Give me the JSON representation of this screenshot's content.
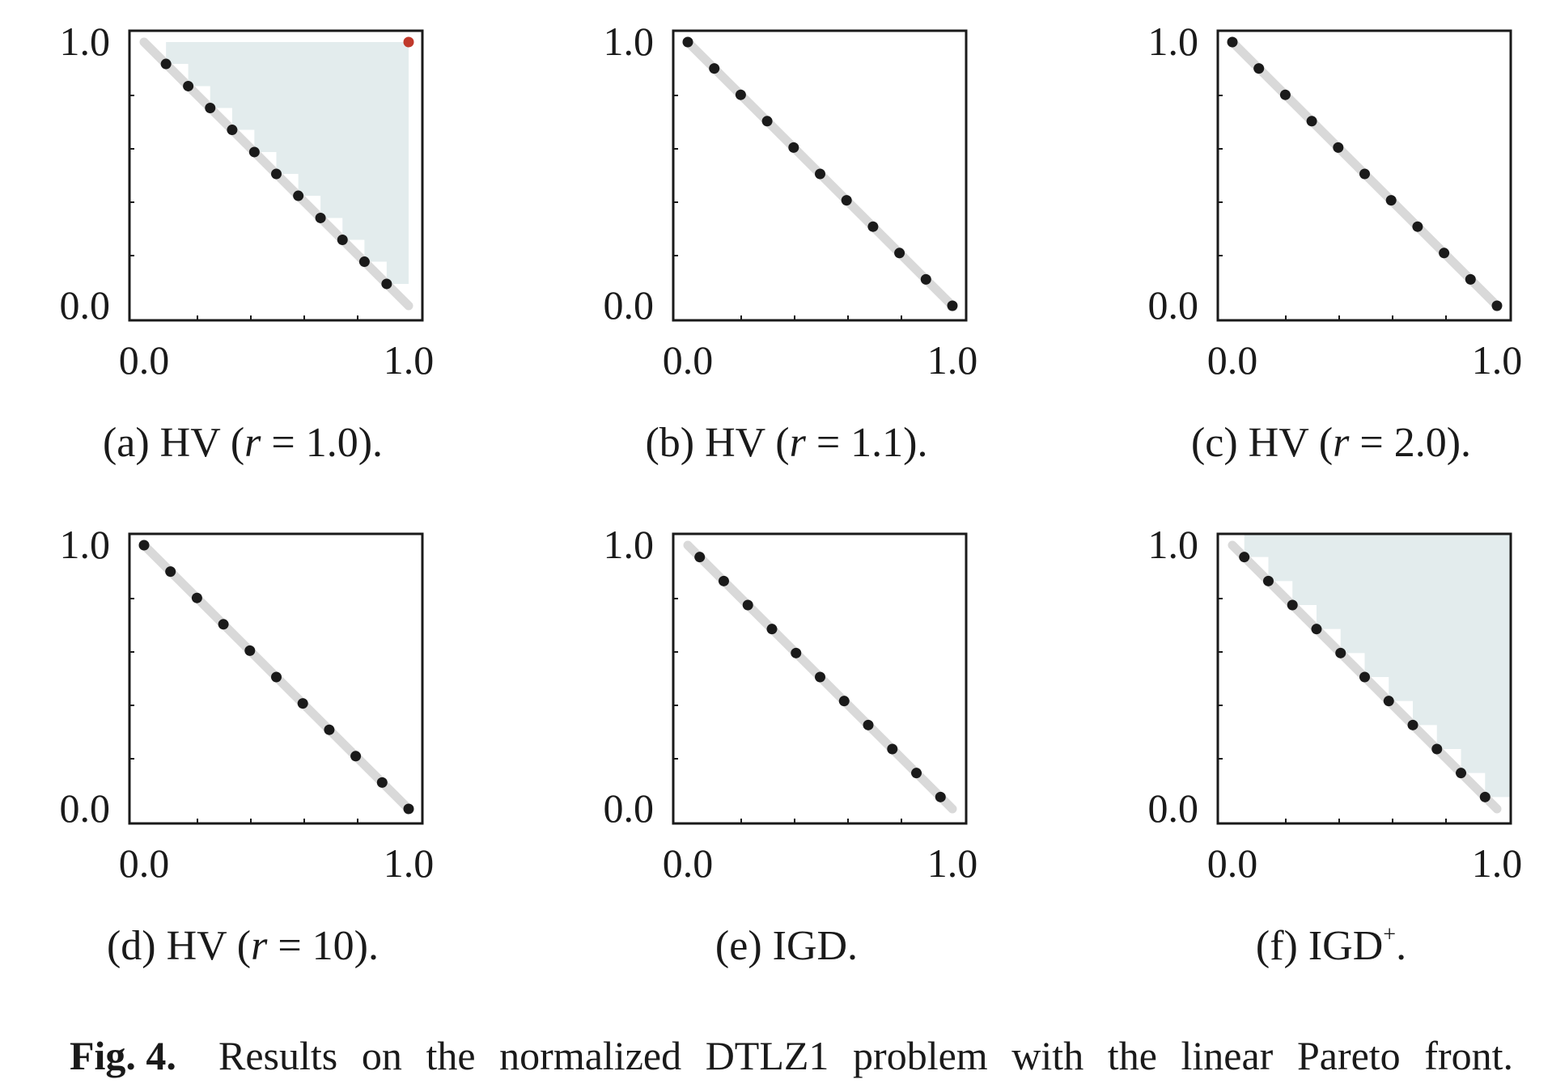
{
  "figure": {
    "caption_label": "Fig. 4.",
    "caption_text": "Results on the normalized DTLZ1 problem with the linear Pareto front."
  },
  "colors": {
    "front_line": "#d9d9d9",
    "point": "#1a1a1a",
    "reference_point": "#c0392b",
    "region_fill": "#e3eced",
    "frame": "#1a1a1a"
  },
  "chart_data": [
    {
      "id": "a",
      "type": "scatter",
      "caption": {
        "prefix": "(a) HV (",
        "var": "r",
        "suffix": " = 1.0)."
      },
      "xlim": [
        0,
        1
      ],
      "ylim": [
        0,
        1
      ],
      "xticks": [
        "0.0",
        "1.0"
      ],
      "yticks": [
        "0.0",
        "1.0"
      ],
      "pareto_front": [
        [
          0,
          1
        ],
        [
          1,
          0
        ]
      ],
      "points": [
        [
          0.083,
          0.917
        ],
        [
          0.167,
          0.833
        ],
        [
          0.25,
          0.75
        ],
        [
          0.333,
          0.667
        ],
        [
          0.417,
          0.583
        ],
        [
          0.5,
          0.5
        ],
        [
          0.583,
          0.417
        ],
        [
          0.667,
          0.333
        ],
        [
          0.75,
          0.25
        ],
        [
          0.833,
          0.167
        ],
        [
          0.917,
          0.083
        ]
      ],
      "reference_point": [
        1.0,
        1.0
      ],
      "region_bound": [
        1.0,
        1.0
      ]
    },
    {
      "id": "b",
      "type": "scatter",
      "caption": {
        "prefix": "(b) HV (",
        "var": "r",
        "suffix": " = 1.1)."
      },
      "xlim": [
        0,
        1
      ],
      "ylim": [
        0,
        1
      ],
      "xticks": [
        "0.0",
        "1.0"
      ],
      "yticks": [
        "0.0",
        "1.0"
      ],
      "pareto_front": [
        [
          0,
          1
        ],
        [
          1,
          0
        ]
      ],
      "points": [
        [
          0,
          1
        ],
        [
          0.1,
          0.9
        ],
        [
          0.2,
          0.8
        ],
        [
          0.3,
          0.7
        ],
        [
          0.4,
          0.6
        ],
        [
          0.5,
          0.5
        ],
        [
          0.6,
          0.4
        ],
        [
          0.7,
          0.3
        ],
        [
          0.8,
          0.2
        ],
        [
          0.9,
          0.1
        ],
        [
          1,
          0
        ]
      ]
    },
    {
      "id": "c",
      "type": "scatter",
      "caption": {
        "prefix": "(c) HV (",
        "var": "r",
        "suffix": " = 2.0)."
      },
      "xlim": [
        0,
        1
      ],
      "ylim": [
        0,
        1
      ],
      "xticks": [
        "0.0",
        "1.0"
      ],
      "yticks": [
        "0.0",
        "1.0"
      ],
      "pareto_front": [
        [
          0,
          1
        ],
        [
          1,
          0
        ]
      ],
      "points": [
        [
          0,
          1
        ],
        [
          0.1,
          0.9
        ],
        [
          0.2,
          0.8
        ],
        [
          0.3,
          0.7
        ],
        [
          0.4,
          0.6
        ],
        [
          0.5,
          0.5
        ],
        [
          0.6,
          0.4
        ],
        [
          0.7,
          0.3
        ],
        [
          0.8,
          0.2
        ],
        [
          0.9,
          0.1
        ],
        [
          1,
          0
        ]
      ]
    },
    {
      "id": "d",
      "type": "scatter",
      "caption": {
        "prefix": "(d) HV (",
        "var": "r",
        "suffix": " = 10)."
      },
      "xlim": [
        0,
        1
      ],
      "ylim": [
        0,
        1
      ],
      "xticks": [
        "0.0",
        "1.0"
      ],
      "yticks": [
        "0.0",
        "1.0"
      ],
      "pareto_front": [
        [
          0,
          1
        ],
        [
          1,
          0
        ]
      ],
      "points": [
        [
          0,
          1
        ],
        [
          0.1,
          0.9
        ],
        [
          0.2,
          0.8
        ],
        [
          0.3,
          0.7
        ],
        [
          0.4,
          0.6
        ],
        [
          0.5,
          0.5
        ],
        [
          0.6,
          0.4
        ],
        [
          0.7,
          0.3
        ],
        [
          0.8,
          0.2
        ],
        [
          0.9,
          0.1
        ],
        [
          1,
          0
        ]
      ]
    },
    {
      "id": "e",
      "type": "scatter",
      "caption": {
        "prefix": "(e) IGD.",
        "var": "",
        "suffix": ""
      },
      "xlim": [
        0,
        1
      ],
      "ylim": [
        0,
        1
      ],
      "xticks": [
        "0.0",
        "1.0"
      ],
      "yticks": [
        "0.0",
        "1.0"
      ],
      "pareto_front": [
        [
          0,
          1
        ],
        [
          1,
          0
        ]
      ],
      "points": [
        [
          0.045,
          0.955
        ],
        [
          0.136,
          0.864
        ],
        [
          0.227,
          0.773
        ],
        [
          0.318,
          0.682
        ],
        [
          0.409,
          0.591
        ],
        [
          0.5,
          0.5
        ],
        [
          0.591,
          0.409
        ],
        [
          0.682,
          0.318
        ],
        [
          0.773,
          0.227
        ],
        [
          0.864,
          0.136
        ],
        [
          0.955,
          0.045
        ]
      ]
    },
    {
      "id": "f",
      "type": "scatter",
      "caption": {
        "prefix": "(f) IGD",
        "var": "",
        "suffix": ".",
        "sup": "+"
      },
      "xlim": [
        0,
        1
      ],
      "ylim": [
        0,
        1
      ],
      "xticks": [
        "0.0",
        "1.0"
      ],
      "yticks": [
        "0.0",
        "1.0"
      ],
      "pareto_front": [
        [
          0,
          1
        ],
        [
          1,
          0
        ]
      ],
      "points": [
        [
          0.045,
          0.955
        ],
        [
          0.136,
          0.864
        ],
        [
          0.227,
          0.773
        ],
        [
          0.318,
          0.682
        ],
        [
          0.409,
          0.591
        ],
        [
          0.5,
          0.5
        ],
        [
          0.591,
          0.409
        ],
        [
          0.682,
          0.318
        ],
        [
          0.773,
          0.227
        ],
        [
          0.864,
          0.136
        ],
        [
          0.955,
          0.045
        ]
      ],
      "region_bound": [
        1.05,
        1.05
      ]
    }
  ]
}
